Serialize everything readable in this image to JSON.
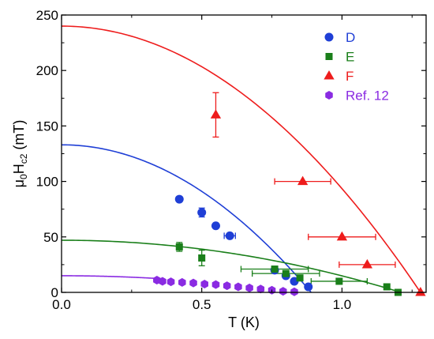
{
  "chart_data": {
    "type": "scatter",
    "title": "",
    "xlabel": "T (K)",
    "ylabel_parts": {
      "mu": "μ",
      "sub0": "0",
      "H": "H",
      "subc2": "c2",
      "unit": " (mT)"
    },
    "xlim": [
      0.0,
      1.3
    ],
    "ylim": [
      0,
      250
    ],
    "x_ticks": [
      0.0,
      0.5,
      1.0
    ],
    "x_tick_labels": [
      "0.0",
      "0.5",
      "1.0"
    ],
    "y_ticks": [
      0,
      50,
      100,
      150,
      200,
      250
    ],
    "y_tick_labels": [
      "0",
      "50",
      "100",
      "150",
      "200",
      "250"
    ],
    "x_minor_ticks": [
      0.25,
      0.75,
      1.25
    ],
    "y_minor_ticks": [
      25,
      75,
      125,
      175,
      225
    ],
    "grid": false,
    "legend_position": "top-right",
    "series": [
      {
        "name": "D",
        "color": "#1f3fd6",
        "marker": "circle",
        "points": [
          {
            "x": 0.42,
            "y": 84
          },
          {
            "x": 0.5,
            "y": 72,
            "yerr": 4
          },
          {
            "x": 0.55,
            "y": 60
          },
          {
            "x": 0.6,
            "y": 51,
            "xerr": 0.02
          },
          {
            "x": 0.76,
            "y": 20
          },
          {
            "x": 0.8,
            "y": 15
          },
          {
            "x": 0.83,
            "y": 10
          },
          {
            "x": 0.88,
            "y": 5
          }
        ],
        "fit": {
          "hc0": 133,
          "tc": 0.89
        }
      },
      {
        "name": "E",
        "color": "#1a7f1a",
        "marker": "square",
        "points": [
          {
            "x": 0.42,
            "y": 41,
            "yerr": 4
          },
          {
            "x": 0.5,
            "y": 31,
            "yerr": 7
          },
          {
            "x": 0.76,
            "y": 21,
            "xerr": 0.12
          },
          {
            "x": 0.8,
            "y": 17,
            "xerr": 0.12
          },
          {
            "x": 0.85,
            "y": 13
          },
          {
            "x": 0.99,
            "y": 10,
            "xerr": 0.1
          },
          {
            "x": 1.16,
            "y": 5
          },
          {
            "x": 1.2,
            "y": 0
          }
        ],
        "fit": {
          "hc0": 47,
          "tc": 1.21
        }
      },
      {
        "name": "F",
        "color": "#ee1c1c",
        "marker": "triangle",
        "points": [
          {
            "x": 0.55,
            "y": 160,
            "yerr": 20
          },
          {
            "x": 0.86,
            "y": 100,
            "xerr": 0.1
          },
          {
            "x": 1.0,
            "y": 50,
            "xerr": 0.12
          },
          {
            "x": 1.09,
            "y": 25,
            "xerr": 0.1
          },
          {
            "x": 1.28,
            "y": 0
          }
        ],
        "fit": {
          "hc0": 240,
          "tc": 1.28
        }
      },
      {
        "name": "Ref. 12",
        "color": "#8a2be2",
        "marker": "hexagon",
        "points": [
          {
            "x": 0.34,
            "y": 11
          },
          {
            "x": 0.36,
            "y": 10
          },
          {
            "x": 0.39,
            "y": 9.5
          },
          {
            "x": 0.43,
            "y": 9
          },
          {
            "x": 0.47,
            "y": 8.5
          },
          {
            "x": 0.51,
            "y": 7.5
          },
          {
            "x": 0.55,
            "y": 7
          },
          {
            "x": 0.59,
            "y": 6
          },
          {
            "x": 0.63,
            "y": 5
          },
          {
            "x": 0.67,
            "y": 4
          },
          {
            "x": 0.71,
            "y": 3
          },
          {
            "x": 0.75,
            "y": 2
          },
          {
            "x": 0.79,
            "y": 1
          },
          {
            "x": 0.83,
            "y": 0.5
          }
        ],
        "fit": {
          "hc0": 15,
          "tc": 0.84,
          "xstart": 0.0,
          "xend": 0.34
        }
      }
    ]
  }
}
